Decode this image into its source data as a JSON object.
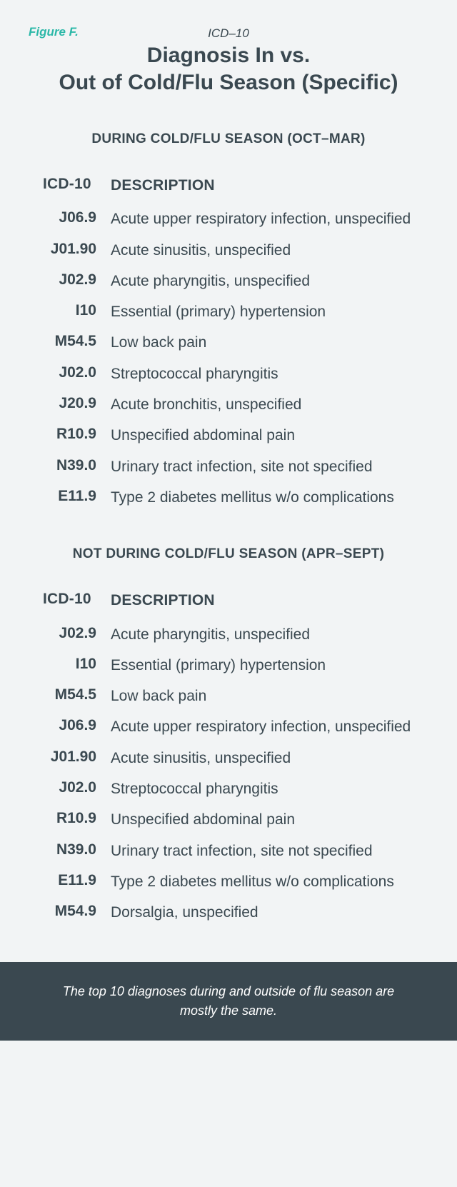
{
  "figure_label": "Figure F.",
  "icd_label": "ICD–10",
  "title_line1": "Diagnosis In vs.",
  "title_line2": "Out of Cold/Flu Season (Specific)",
  "section1": {
    "header": "DURING COLD/FLU SEASON (OCT–MAR)",
    "col_code": "ICD-10",
    "col_desc": "DESCRIPTION",
    "rows": [
      {
        "code": "J06.9",
        "desc": "Acute upper respiratory infection, unspecified"
      },
      {
        "code": "J01.90",
        "desc": "Acute sinusitis, unspecified"
      },
      {
        "code": "J02.9",
        "desc": "Acute pharyngitis, unspecified"
      },
      {
        "code": "I10",
        "desc": "Essential (primary) hypertension"
      },
      {
        "code": "M54.5",
        "desc": "Low back pain"
      },
      {
        "code": "J02.0",
        "desc": "Streptococcal pharyngitis"
      },
      {
        "code": "J20.9",
        "desc": "Acute bronchitis, unspecified"
      },
      {
        "code": "R10.9",
        "desc": "Unspecified abdominal pain"
      },
      {
        "code": "N39.0",
        "desc": "Urinary tract infection, site not specified"
      },
      {
        "code": "E11.9",
        "desc": "Type 2 diabetes mellitus w/o complications"
      }
    ]
  },
  "section2": {
    "header": "NOT DURING COLD/FLU SEASON (APR–SEPT)",
    "col_code": "ICD-10",
    "col_desc": "DESCRIPTION",
    "rows": [
      {
        "code": "J02.9",
        "desc": "Acute pharyngitis, unspecified"
      },
      {
        "code": "I10",
        "desc": "Essential (primary) hypertension"
      },
      {
        "code": "M54.5",
        "desc": "Low back pain"
      },
      {
        "code": "J06.9",
        "desc": "Acute upper respiratory infection, unspecified"
      },
      {
        "code": "J01.90",
        "desc": "Acute sinusitis, unspecified"
      },
      {
        "code": "J02.0",
        "desc": "Streptococcal pharyngitis"
      },
      {
        "code": "R10.9",
        "desc": "Unspecified abdominal pain"
      },
      {
        "code": "N39.0",
        "desc": "Urinary tract infection, site not specified"
      },
      {
        "code": "E11.9",
        "desc": "Type 2 diabetes mellitus w/o complications"
      },
      {
        "code": "M54.9",
        "desc": "Dorsalgia, unspecified"
      }
    ]
  },
  "footer": "The top 10 diagnoses during and outside of flu season are mostly the same.",
  "colors": {
    "background": "#f2f4f5",
    "text": "#3a4850",
    "accent": "#2bb8a8",
    "footer_bg": "#3a4850",
    "footer_text": "#ffffff"
  }
}
